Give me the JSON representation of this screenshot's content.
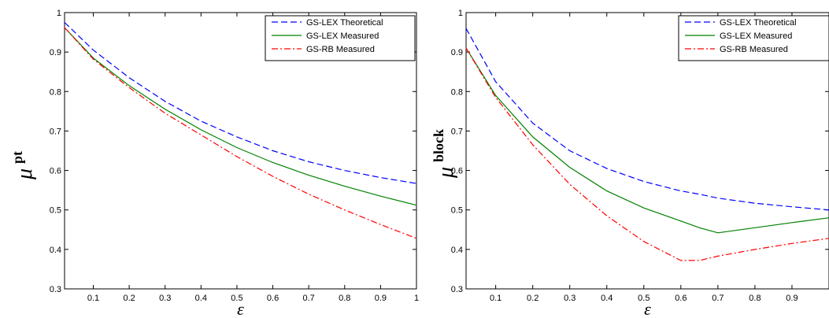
{
  "chart_data": [
    {
      "type": "line",
      "xlabel": "ε",
      "ylabel": "μ",
      "ylabel_superscript": "pt",
      "xlim": [
        0.02,
        1.0
      ],
      "ylim": [
        0.3,
        1.0
      ],
      "xticks": [
        "0.1",
        "0.2",
        "0.3",
        "0.4",
        "0.5",
        "0.6",
        "0.7",
        "0.8",
        "0.9",
        "1"
      ],
      "yticks": [
        "0.3",
        "0.4",
        "0.5",
        "0.6",
        "0.7",
        "0.8",
        "0.9",
        "1"
      ],
      "legend_position": "top-right",
      "grid": false,
      "x": [
        0.02,
        0.1,
        0.2,
        0.3,
        0.4,
        0.5,
        0.6,
        0.7,
        0.8,
        0.9,
        1.0
      ],
      "series": [
        {
          "name": "GS-LEX Theoretical",
          "color": "#0000ff",
          "dash": "dashed",
          "values": [
            0.975,
            0.905,
            0.835,
            0.775,
            0.725,
            0.685,
            0.65,
            0.622,
            0.6,
            0.582,
            0.567
          ]
        },
        {
          "name": "GS-LEX Measured",
          "color": "#008000",
          "dash": "solid",
          "values": [
            0.962,
            0.885,
            0.815,
            0.755,
            0.703,
            0.658,
            0.62,
            0.588,
            0.56,
            0.535,
            0.512
          ]
        },
        {
          "name": "GS-RB Measured",
          "color": "#ff0000",
          "dash": "dashdot",
          "values": [
            0.962,
            0.882,
            0.81,
            0.745,
            0.69,
            0.635,
            0.585,
            0.54,
            0.5,
            0.463,
            0.428
          ]
        }
      ]
    },
    {
      "type": "line",
      "xlabel": "ε",
      "ylabel": "μ",
      "ylabel_superscript": "block",
      "xlim": [
        0.02,
        1.0
      ],
      "ylim": [
        0.3,
        1.0
      ],
      "xticks": [
        "0.1",
        "0.2",
        "0.3",
        "0.4",
        "0.5",
        "0.6",
        "0.7",
        "0.8",
        "0.9"
      ],
      "yticks": [
        "0.3",
        "0.4",
        "0.5",
        "0.6",
        "0.7",
        "0.8",
        "0.9",
        "1"
      ],
      "legend_position": "top-right",
      "grid": false,
      "x": [
        0.02,
        0.1,
        0.2,
        0.3,
        0.4,
        0.5,
        0.6,
        0.65,
        0.7,
        0.8,
        0.9,
        1.0
      ],
      "series": [
        {
          "name": "GS-LEX Theoretical",
          "color": "#0000ff",
          "dash": "dashed",
          "values": [
            0.96,
            0.825,
            0.72,
            0.65,
            0.605,
            0.572,
            0.548,
            0.54,
            0.53,
            0.517,
            0.508,
            0.5
          ]
        },
        {
          "name": "GS-LEX Measured",
          "color": "#008000",
          "dash": "solid",
          "values": [
            0.91,
            0.79,
            0.685,
            0.608,
            0.548,
            0.505,
            0.472,
            0.455,
            0.442,
            0.455,
            0.468,
            0.48
          ]
        },
        {
          "name": "GS-RB Measured",
          "color": "#ff0000",
          "dash": "dashdot",
          "values": [
            0.91,
            0.785,
            0.665,
            0.565,
            0.485,
            0.42,
            0.372,
            0.372,
            0.383,
            0.4,
            0.415,
            0.428
          ]
        }
      ]
    }
  ]
}
